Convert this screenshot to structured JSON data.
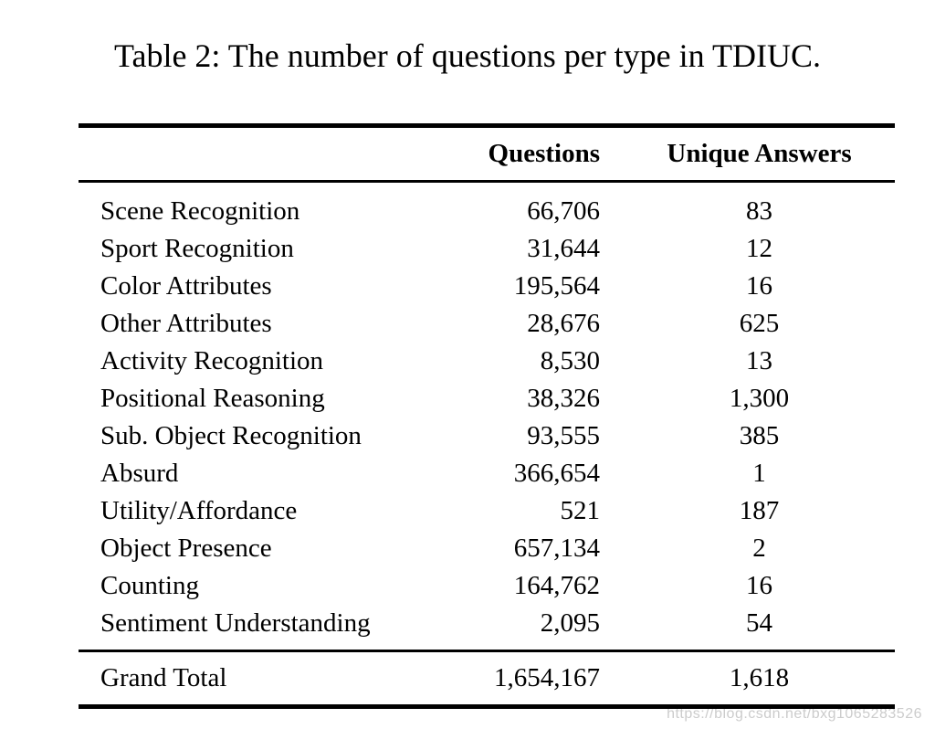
{
  "page": {
    "caption": "Table 2: The number of questions per type in TDIUC."
  },
  "table": {
    "columns": {
      "label": "",
      "questions": "Questions",
      "unique_answers": "Unique Answers"
    },
    "rows": [
      {
        "label": "Scene Recognition",
        "questions": "66,706",
        "unique_answers": "83"
      },
      {
        "label": "Sport Recognition",
        "questions": "31,644",
        "unique_answers": "12"
      },
      {
        "label": "Color Attributes",
        "questions": "195,564",
        "unique_answers": "16"
      },
      {
        "label": "Other Attributes",
        "questions": "28,676",
        "unique_answers": "625"
      },
      {
        "label": "Activity Recognition",
        "questions": "8,530",
        "unique_answers": "13"
      },
      {
        "label": "Positional Reasoning",
        "questions": "38,326",
        "unique_answers": "1,300"
      },
      {
        "label": "Sub. Object Recognition",
        "questions": "93,555",
        "unique_answers": "385"
      },
      {
        "label": "Absurd",
        "questions": "366,654",
        "unique_answers": "1"
      },
      {
        "label": "Utility/Affordance",
        "questions": "521",
        "unique_answers": "187"
      },
      {
        "label": "Object Presence",
        "questions": "657,134",
        "unique_answers": "2"
      },
      {
        "label": "Counting",
        "questions": "164,762",
        "unique_answers": "16"
      },
      {
        "label": "Sentiment Understanding",
        "questions": "2,095",
        "unique_answers": "54"
      }
    ],
    "total": {
      "label": "Grand Total",
      "questions": "1,654,167",
      "unique_answers": "1,618"
    }
  },
  "watermark": {
    "text": "https://blog.csdn.net/bxg1065283526",
    "color": "#cccccc"
  },
  "colors": {
    "background": "#ffffff",
    "text": "#000000",
    "rule": "#000000"
  }
}
